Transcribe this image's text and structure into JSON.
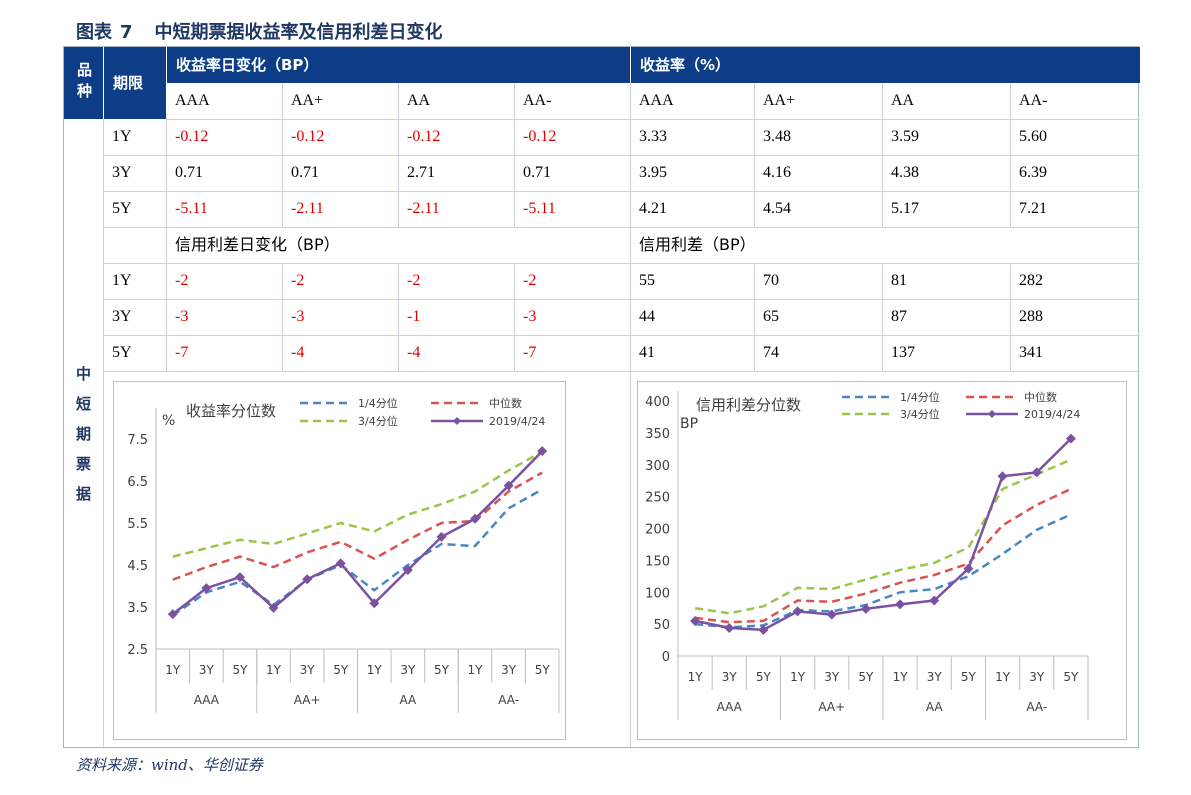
{
  "title": {
    "prefix": "图表",
    "number": "7",
    "text": "中短期票据收益率及信用利差日变化"
  },
  "source": "资料来源：wind、华创证券",
  "header": {
    "col0": "品种",
    "col1": "期限",
    "group_left": "收益率日变化（BP）",
    "group_right": "收益率（%）",
    "ratings": [
      "AAA",
      "AA+",
      "AA",
      "AA-"
    ]
  },
  "variety_label": "中短期票据",
  "section2": {
    "left": "信用利差日变化（BP）",
    "right": "信用利差（BP）"
  },
  "yield_rows": [
    {
      "term": "1Y",
      "change": [
        "-0.12",
        "-0.12",
        "-0.12",
        "-0.12"
      ],
      "value": [
        "3.33",
        "3.48",
        "3.59",
        "5.60"
      ]
    },
    {
      "term": "3Y",
      "change": [
        "0.71",
        "0.71",
        "2.71",
        "0.71"
      ],
      "value": [
        "3.95",
        "4.16",
        "4.38",
        "6.39"
      ]
    },
    {
      "term": "5Y",
      "change": [
        "-5.11",
        "-2.11",
        "-2.11",
        "-5.11"
      ],
      "value": [
        "4.21",
        "4.54",
        "5.17",
        "7.21"
      ]
    }
  ],
  "spread_rows": [
    {
      "term": "1Y",
      "change": [
        "-2",
        "-2",
        "-2",
        "-2"
      ],
      "value": [
        "55",
        "70",
        "81",
        "282"
      ]
    },
    {
      "term": "3Y",
      "change": [
        "-3",
        "-3",
        "-1",
        "-3"
      ],
      "value": [
        "44",
        "65",
        "87",
        "288"
      ]
    },
    {
      "term": "5Y",
      "change": [
        "-7",
        "-4",
        "-4",
        "-7"
      ],
      "value": [
        "41",
        "74",
        "137",
        "341"
      ]
    }
  ],
  "colors": {
    "header_bg": "#0d3d86",
    "q1": "#4a86c5",
    "median": "#d9534f",
    "q3": "#9bc54a",
    "current": "#7a52a0",
    "negative": "#e00000"
  },
  "chart_data": [
    {
      "type": "line",
      "title": "收益率分位数",
      "ylabel": "%",
      "ylim": [
        2.5,
        8.0
      ],
      "yticks": [
        "2.5",
        "3.5",
        "4.5",
        "5.5",
        "6.5",
        "7.5"
      ],
      "x_terms": [
        "1Y",
        "3Y",
        "5Y",
        "1Y",
        "3Y",
        "5Y",
        "1Y",
        "3Y",
        "5Y",
        "1Y",
        "3Y",
        "5Y"
      ],
      "x_groups": [
        "AAA",
        "AA+",
        "AA",
        "AA-"
      ],
      "series": [
        {
          "name": "1/4分位",
          "style": "dashed",
          "values": [
            3.3,
            3.85,
            4.1,
            3.55,
            4.15,
            4.5,
            3.9,
            4.5,
            5.0,
            4.95,
            5.85,
            6.3
          ]
        },
        {
          "name": "中位数",
          "style": "dashed",
          "values": [
            4.15,
            4.45,
            4.7,
            4.45,
            4.8,
            5.05,
            4.65,
            5.1,
            5.5,
            5.55,
            6.25,
            6.7
          ]
        },
        {
          "name": "3/4分位",
          "style": "dashed",
          "values": [
            4.7,
            4.9,
            5.1,
            5.0,
            5.25,
            5.5,
            5.3,
            5.7,
            5.95,
            6.25,
            6.75,
            7.2
          ]
        },
        {
          "name": "2019/4/24",
          "style": "solid-marker",
          "values": [
            3.33,
            3.95,
            4.21,
            3.48,
            4.16,
            4.54,
            3.59,
            4.38,
            5.17,
            5.6,
            6.39,
            7.21
          ]
        }
      ]
    },
    {
      "type": "line",
      "title": "信用利差分位数",
      "ylabel": "BP",
      "ylim": [
        0,
        400
      ],
      "yticks": [
        "0",
        "50",
        "100",
        "150",
        "200",
        "250",
        "300",
        "350",
        "400"
      ],
      "x_terms": [
        "1Y",
        "3Y",
        "5Y",
        "1Y",
        "3Y",
        "5Y",
        "1Y",
        "3Y",
        "5Y",
        "1Y",
        "3Y",
        "5Y"
      ],
      "x_groups": [
        "AAA",
        "AA+",
        "AA",
        "AA-"
      ],
      "series": [
        {
          "name": "1/4分位",
          "style": "dashed",
          "values": [
            50,
            45,
            48,
            72,
            70,
            80,
            100,
            105,
            125,
            160,
            198,
            222
          ]
        },
        {
          "name": "中位数",
          "style": "dashed",
          "values": [
            60,
            53,
            55,
            87,
            85,
            98,
            115,
            127,
            145,
            205,
            237,
            262
          ]
        },
        {
          "name": "3/4分位",
          "style": "dashed",
          "values": [
            75,
            67,
            78,
            107,
            105,
            120,
            135,
            146,
            170,
            262,
            285,
            308
          ]
        },
        {
          "name": "2019/4/24",
          "style": "solid-marker",
          "values": [
            55,
            44,
            41,
            70,
            65,
            74,
            81,
            87,
            137,
            282,
            288,
            341
          ]
        }
      ]
    }
  ]
}
